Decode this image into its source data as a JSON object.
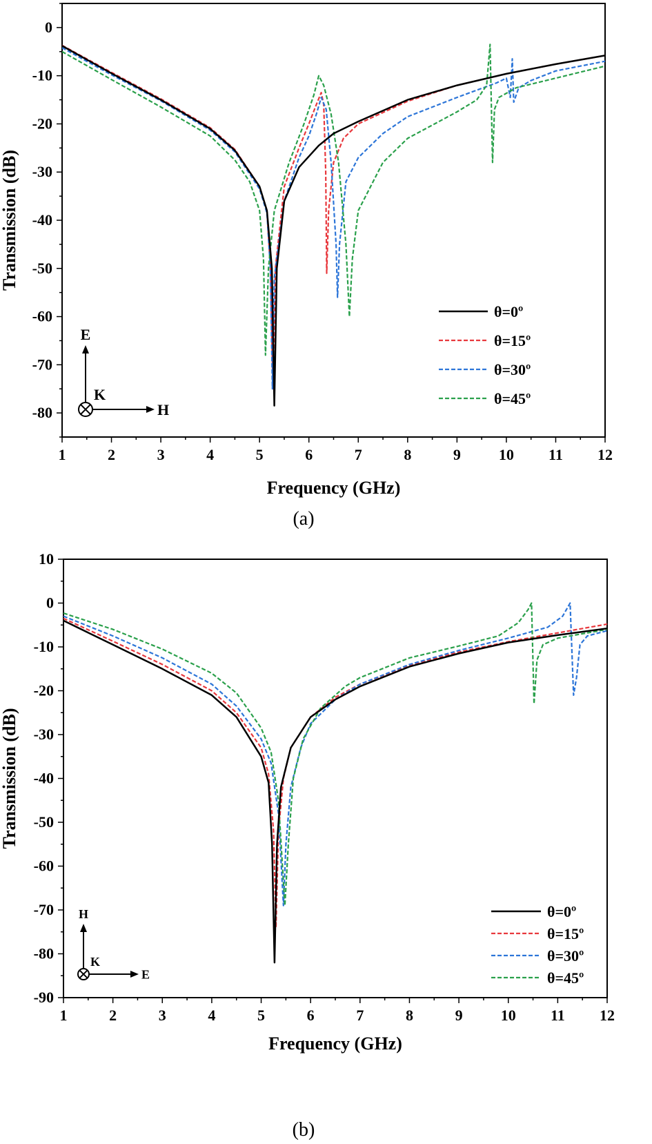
{
  "chart_data": [
    {
      "type": "line",
      "caption": "(a)",
      "xlabel": "Frequency (GHz)",
      "ylabel": "Transmission (dB)",
      "xlim": [
        1,
        12
      ],
      "ylim": [
        -85,
        5
      ],
      "xticks": [
        1,
        2,
        3,
        4,
        5,
        6,
        7,
        8,
        9,
        10,
        11,
        12
      ],
      "yticks": [
        0,
        -10,
        -20,
        -30,
        -40,
        -50,
        -60,
        -70,
        -80
      ],
      "legend_position": "lower-right",
      "field_diagram": {
        "up": "E",
        "right": "H",
        "k": "K"
      },
      "series": [
        {
          "name": "θ=0º",
          "color": "#000000",
          "style": "solid",
          "x": [
            1,
            2,
            3,
            4,
            4.5,
            5,
            5.15,
            5.25,
            5.3,
            5.35,
            5.5,
            5.8,
            6.2,
            6.5,
            7,
            8,
            9,
            10,
            11,
            12
          ],
          "y": [
            -3.8,
            -9.5,
            -15,
            -21,
            -25.5,
            -33,
            -38,
            -50,
            -78.5,
            -50,
            -36,
            -29,
            -24.5,
            -22,
            -19.5,
            -15,
            -12,
            -9.6,
            -7.6,
            -5.8
          ]
        },
        {
          "name": "θ=15º",
          "color": "#e8383d",
          "style": "dashed",
          "x": [
            1,
            2,
            3,
            4,
            4.5,
            5,
            5.15,
            5.22,
            5.27,
            5.32,
            5.5,
            5.8,
            6.0,
            6.15,
            6.25,
            6.3,
            6.34,
            6.36,
            6.4,
            6.5,
            6.7,
            7,
            8,
            9,
            10,
            11,
            12
          ],
          "y": [
            -3.7,
            -9.3,
            -14.8,
            -20.8,
            -25.3,
            -33,
            -38,
            -50,
            -75,
            -50,
            -33,
            -25,
            -20,
            -16,
            -13.5,
            -16,
            -30,
            -51,
            -38,
            -28,
            -23,
            -20,
            -15.3,
            -12,
            -9.6,
            -7.6,
            -5.8
          ]
        },
        {
          "name": "θ=30º",
          "color": "#2c75d8",
          "style": "dashed",
          "x": [
            1,
            2,
            3,
            4,
            4.5,
            5,
            5.15,
            5.22,
            5.26,
            5.3,
            5.5,
            5.8,
            6.0,
            6.15,
            6.25,
            6.35,
            6.45,
            6.55,
            6.58,
            6.62,
            6.75,
            7,
            7.5,
            8,
            9,
            9.8,
            10.0,
            10.08,
            10.12,
            10.15,
            10.25,
            10.5,
            11,
            12
          ],
          "y": [
            -4.2,
            -9.8,
            -15.2,
            -21.3,
            -25.8,
            -33.5,
            -38.5,
            -50,
            -75,
            -52,
            -36,
            -27,
            -22.5,
            -18,
            -14.5,
            -17,
            -28,
            -45,
            -56,
            -45,
            -32,
            -27,
            -22,
            -18.5,
            -14.5,
            -11.5,
            -10.5,
            -14.5,
            -6.5,
            -15.5,
            -12.5,
            -11,
            -9,
            -7
          ]
        },
        {
          "name": "θ=45º",
          "color": "#2aa04b",
          "style": "dashed",
          "x": [
            1,
            2,
            3,
            4,
            4.5,
            4.8,
            5.0,
            5.08,
            5.12,
            5.18,
            5.3,
            5.6,
            5.9,
            6.1,
            6.2,
            6.3,
            6.45,
            6.6,
            6.75,
            6.82,
            6.88,
            7,
            7.5,
            8,
            9,
            9.4,
            9.6,
            9.67,
            9.72,
            9.76,
            9.85,
            10.2,
            11,
            12
          ],
          "y": [
            -5,
            -10.8,
            -16.5,
            -22.5,
            -27.5,
            -32,
            -38,
            -48,
            -68,
            -50,
            -38,
            -28,
            -20,
            -14,
            -10,
            -12,
            -18,
            -28,
            -45,
            -60,
            -48,
            -38,
            -28,
            -23,
            -17.5,
            -15,
            -12,
            -3.5,
            -28,
            -17,
            -14.5,
            -12.5,
            -10.5,
            -8
          ]
        }
      ]
    },
    {
      "type": "line",
      "caption": "(b)",
      "xlabel": "Frequency (GHz)",
      "ylabel": "Transmission (dB)",
      "xlim": [
        1,
        12
      ],
      "ylim": [
        -90,
        10
      ],
      "xticks": [
        1,
        2,
        3,
        4,
        5,
        6,
        7,
        8,
        9,
        10,
        11,
        12
      ],
      "yticks": [
        10,
        0,
        -10,
        -20,
        -30,
        -40,
        -50,
        -60,
        -70,
        -80,
        -90
      ],
      "legend_position": "lower-right",
      "field_diagram": {
        "up": "H",
        "right": "E",
        "k": "K"
      },
      "series": [
        {
          "name": "θ=0º",
          "color": "#000000",
          "style": "solid",
          "x": [
            1,
            2,
            3,
            4,
            4.5,
            5,
            5.15,
            5.22,
            5.27,
            5.32,
            5.4,
            5.6,
            6,
            6.5,
            7,
            8,
            9,
            10,
            11,
            12
          ],
          "y": [
            -4,
            -9.5,
            -15,
            -21,
            -26,
            -35,
            -41,
            -55,
            -82,
            -55,
            -42,
            -33,
            -26,
            -22,
            -19,
            -14.5,
            -11.5,
            -9,
            -7.3,
            -5.8
          ]
        },
        {
          "name": "θ=15º",
          "color": "#e8383d",
          "style": "dashed",
          "x": [
            1,
            2,
            3,
            4,
            4.5,
            5,
            5.15,
            5.25,
            5.3,
            5.35,
            5.45,
            5.6,
            6,
            6.5,
            7,
            8,
            9,
            10,
            11,
            12
          ],
          "y": [
            -3.5,
            -8.7,
            -14,
            -20,
            -25,
            -33,
            -39,
            -52,
            -74,
            -52,
            -40,
            -33,
            -26,
            -21.5,
            -18.5,
            -14.2,
            -11.2,
            -8.8,
            -6.8,
            -4.8
          ]
        },
        {
          "name": "θ=30º",
          "color": "#2c75d8",
          "style": "dashed",
          "x": [
            1,
            2,
            3,
            4,
            4.5,
            5,
            5.2,
            5.35,
            5.45,
            5.5,
            5.6,
            5.8,
            6,
            6.5,
            7,
            8,
            9,
            10,
            10.8,
            11.1,
            11.25,
            11.32,
            11.38,
            11.45,
            11.6,
            12
          ],
          "y": [
            -3,
            -7.5,
            -12.5,
            -18.5,
            -23.5,
            -31,
            -36.5,
            -48,
            -69,
            -55,
            -42,
            -33,
            -27.5,
            -22,
            -18.5,
            -14,
            -10.8,
            -8,
            -5.5,
            -3,
            0,
            -21,
            -17,
            -9.5,
            -7.5,
            -6.3
          ]
        },
        {
          "name": "θ=45º",
          "color": "#2aa04b",
          "style": "dashed",
          "x": [
            1,
            2,
            3,
            4,
            4.5,
            5,
            5.2,
            5.35,
            5.48,
            5.55,
            5.65,
            5.85,
            6.2,
            6.7,
            7,
            8,
            9,
            9.8,
            10.2,
            10.4,
            10.47,
            10.52,
            10.58,
            10.7,
            11,
            12
          ],
          "y": [
            -2.3,
            -6,
            -10.5,
            -16,
            -20.5,
            -28.5,
            -34,
            -45,
            -69,
            -55,
            -40,
            -31,
            -24,
            -19,
            -17,
            -12.5,
            -9.8,
            -7.5,
            -4.5,
            -1.5,
            0,
            -23,
            -13,
            -9.5,
            -8,
            -6
          ]
        }
      ]
    }
  ]
}
